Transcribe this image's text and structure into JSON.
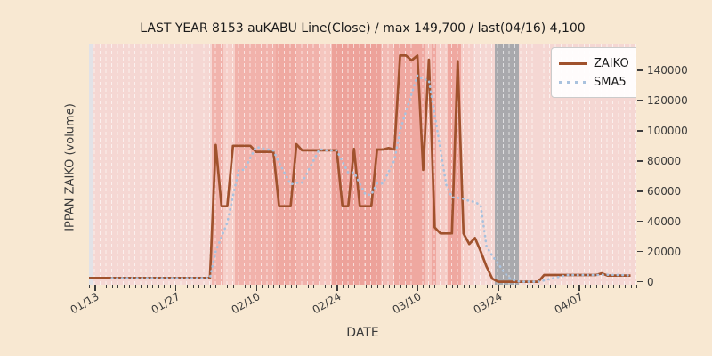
{
  "chart_data": {
    "type": "line",
    "title": "LAST YEAR 8153 auKABU Line(Close) / max 149,700 / last(04/16) 4,100",
    "xlabel": "DATE",
    "ylabel": "IPPAN ZAIKO (volume)",
    "x_range_days": 95,
    "ylim": [
      -2000,
      157000
    ],
    "yticks": [
      0,
      20000,
      40000,
      60000,
      80000,
      100000,
      120000,
      140000
    ],
    "xticks": [
      {
        "day": 1,
        "label": "01/13"
      },
      {
        "day": 15,
        "label": "01/27"
      },
      {
        "day": 29,
        "label": "02/10"
      },
      {
        "day": 43,
        "label": "02/24"
      },
      {
        "day": 57,
        "label": "03/10"
      },
      {
        "day": 71,
        "label": "03/24"
      },
      {
        "day": 85,
        "label": "04/07"
      }
    ],
    "legend_position": "upper right",
    "grid": {
      "daily_vertical_dashed": true,
      "color": "rgba(255,255,255,0.62)"
    },
    "series": [
      {
        "name": "ZAIKO",
        "color": "#A0522D",
        "style": "solid",
        "values": [
          2500,
          2500,
          2500,
          2500,
          2500,
          2500,
          2500,
          2500,
          2500,
          2500,
          2500,
          2500,
          2500,
          2500,
          2500,
          2500,
          2500,
          2500,
          2500,
          2500,
          2500,
          2500,
          90600,
          50000,
          50000,
          90000,
          90000,
          90000,
          90000,
          86000,
          86000,
          86000,
          86000,
          50000,
          50000,
          50000,
          91000,
          87000,
          87000,
          87000,
          87000,
          87000,
          87000,
          87000,
          50000,
          50000,
          88000,
          50000,
          50000,
          50000,
          87500,
          87500,
          88500,
          87500,
          149700,
          149700,
          146500,
          149700,
          74000,
          147000,
          36000,
          32000,
          32000,
          32000,
          146000,
          32000,
          25000,
          29000,
          20000,
          10000,
          2000,
          0,
          0,
          0,
          0,
          0,
          0,
          0,
          0,
          4500,
          4500,
          4500,
          4500,
          4500,
          4500,
          4500,
          4500,
          4500,
          4500,
          5600,
          4100,
          4100,
          4100,
          4100,
          4100
        ]
      },
      {
        "name": "SMA5",
        "color": "#a9c2de",
        "style": "dotted",
        "derived": "sma",
        "window": 5
      }
    ],
    "background_bands": [
      {
        "from_day": 0,
        "to_day": 0.8,
        "color": "#e2e2e7"
      },
      {
        "from_day": 0.8,
        "to_day": 21.3,
        "color": "#f5d7d3"
      },
      {
        "from_day": 21.3,
        "to_day": 23.4,
        "color": "#f1b4ad"
      },
      {
        "from_day": 23.4,
        "to_day": 25.3,
        "color": "#f6cfc9"
      },
      {
        "from_day": 25.3,
        "to_day": 32.4,
        "color": "#f1b2ab"
      },
      {
        "from_day": 32.4,
        "to_day": 36.0,
        "color": "#efa9a1"
      },
      {
        "from_day": 36.0,
        "to_day": 40.2,
        "color": "#f1b2ab"
      },
      {
        "from_day": 40.2,
        "to_day": 42.2,
        "color": "#f5c6bf"
      },
      {
        "from_day": 42.2,
        "to_day": 50.7,
        "color": "#eda29a"
      },
      {
        "from_day": 50.7,
        "to_day": 53.0,
        "color": "#f2bab3"
      },
      {
        "from_day": 53.0,
        "to_day": 58.2,
        "color": "#efa8a0"
      },
      {
        "from_day": 58.2,
        "to_day": 59.4,
        "color": "#f4c3bc"
      },
      {
        "from_day": 59.4,
        "to_day": 60.3,
        "color": "#efa8a0"
      },
      {
        "from_day": 60.3,
        "to_day": 62.2,
        "color": "#f5cbc5"
      },
      {
        "from_day": 62.2,
        "to_day": 64.6,
        "color": "#efa8a0"
      },
      {
        "from_day": 64.6,
        "to_day": 66.8,
        "color": "#f6cfc9"
      },
      {
        "from_day": 66.8,
        "to_day": 70.4,
        "color": "#f5d7d3"
      },
      {
        "from_day": 70.4,
        "to_day": 74.6,
        "color": "#a9a9ad"
      },
      {
        "from_day": 74.6,
        "to_day": 95,
        "color": "#f5d7d3"
      }
    ]
  }
}
